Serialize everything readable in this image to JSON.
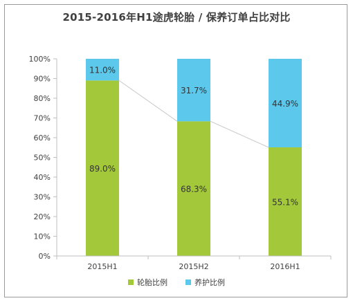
{
  "chart_data": {
    "type": "bar",
    "stacked": true,
    "title": "2015-2016年H1途虎轮胎 / 保养订单占比对比",
    "categories": [
      "2015H1",
      "2015H2",
      "2016H1"
    ],
    "series": [
      {
        "name": "轮胎比例",
        "color": "#a3c93a",
        "values": [
          89.0,
          68.3,
          55.1
        ],
        "labels": [
          "89.0%",
          "68.3%",
          "55.1%"
        ]
      },
      {
        "name": "养护比例",
        "color": "#5bc8ec",
        "values": [
          11.0,
          31.7,
          44.9
        ],
        "labels": [
          "11.0%",
          "31.7%",
          "44.9%"
        ]
      }
    ],
    "ylim": [
      0,
      100
    ],
    "yticks": [
      "0%",
      "10%",
      "20%",
      "30%",
      "40%",
      "50%",
      "60%",
      "70%",
      "80%",
      "90%",
      "100%"
    ],
    "connector_line": true,
    "legend_position": "bottom"
  }
}
